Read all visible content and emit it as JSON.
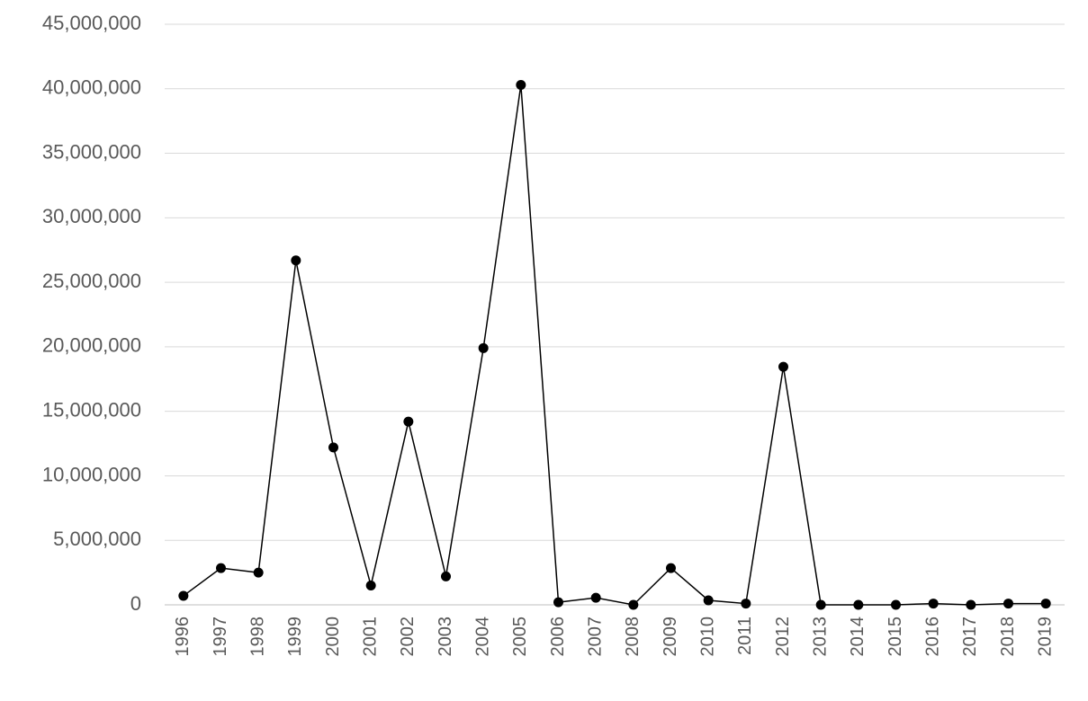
{
  "chart_data": {
    "type": "line",
    "categories": [
      "1996",
      "1997",
      "1998",
      "1999",
      "2000",
      "2001",
      "2002",
      "2003",
      "2004",
      "2005",
      "2006",
      "2007",
      "2008",
      "2009",
      "2010",
      "2011",
      "2012",
      "2013",
      "2014",
      "2015",
      "2016",
      "2017",
      "2018",
      "2019"
    ],
    "series": [
      {
        "color": "#000000",
        "values": [
          700000,
          2850000,
          2500000,
          26700000,
          12200000,
          1500000,
          14200000,
          2200000,
          19900000,
          40300000,
          200000,
          550000,
          0,
          2850000,
          350000,
          100000,
          18450000,
          0,
          0,
          0,
          100000,
          0,
          100000,
          100000
        ]
      }
    ],
    "ylim": [
      0,
      45000000
    ],
    "yticks": [
      0,
      {
        "value": 5000000,
        "label": "5,000,000"
      },
      {
        "value": 10000000,
        "label": "10,000,000"
      },
      {
        "value": 15000000,
        "label": "15,000,000"
      },
      {
        "value": 20000000,
        "label": "20,000,000"
      },
      {
        "value": 25000000,
        "label": "25,000,000"
      },
      {
        "value": 30000000,
        "label": "30,000,000"
      },
      {
        "value": 35000000,
        "label": "35,000,000"
      },
      {
        "value": 40000000,
        "label": "40,000,000"
      },
      {
        "value": 45000000,
        "label": "45,000,000"
      }
    ],
    "grid": true
  }
}
